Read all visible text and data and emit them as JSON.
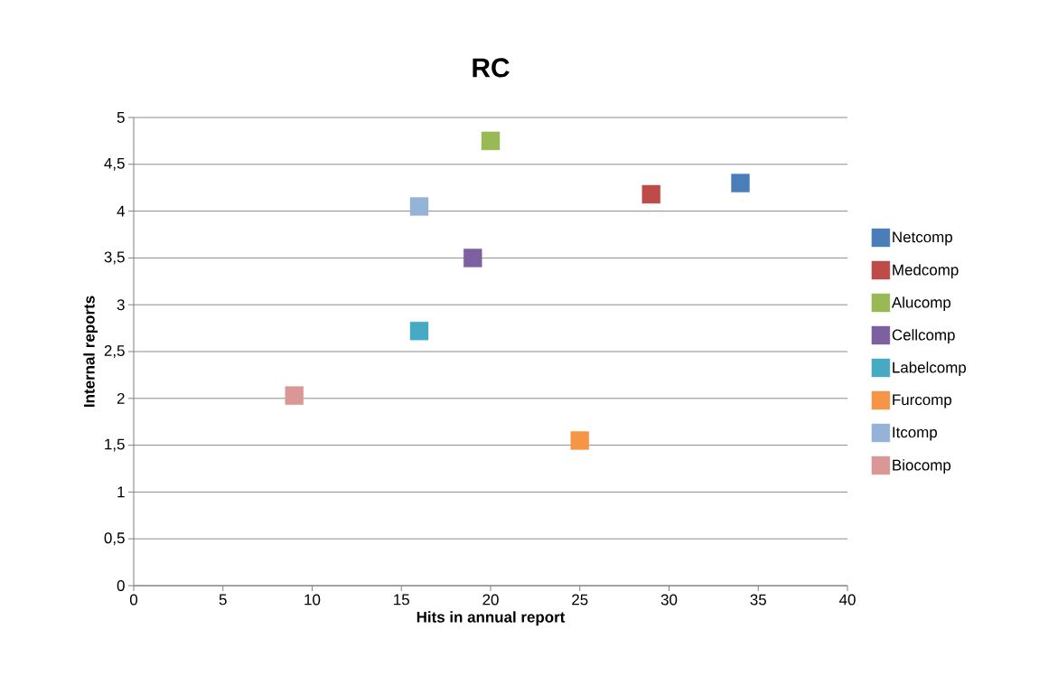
{
  "chart_data": {
    "type": "scatter",
    "title": "RC",
    "xlabel": "Hits in annual report",
    "ylabel": "Internal reports",
    "series": [
      {
        "name": "Netcomp",
        "color": "#4a7ebb",
        "x": [
          34
        ],
        "values": [
          4.3
        ]
      },
      {
        "name": "Medcomp",
        "color": "#be4b48",
        "x": [
          29
        ],
        "values": [
          4.18
        ]
      },
      {
        "name": "Alucomp",
        "color": "#98b954",
        "x": [
          20
        ],
        "values": [
          4.75
        ]
      },
      {
        "name": "Cellcomp",
        "color": "#7d60a0",
        "x": [
          19
        ],
        "values": [
          3.5
        ]
      },
      {
        "name": "Labelcomp",
        "color": "#46aac5",
        "x": [
          16
        ],
        "values": [
          2.72
        ]
      },
      {
        "name": "Furcomp",
        "color": "#f69546",
        "x": [
          25
        ],
        "values": [
          1.55
        ]
      },
      {
        "name": "Itcomp",
        "color": "#95b3d7",
        "x": [
          16
        ],
        "values": [
          4.05
        ]
      },
      {
        "name": "Biocomp",
        "color": "#d99795",
        "x": [
          9
        ],
        "values": [
          2.03
        ]
      }
    ],
    "xlim": [
      0,
      40
    ],
    "xticks": [
      0,
      5,
      10,
      15,
      20,
      25,
      30,
      35,
      40
    ],
    "ylim": [
      0,
      5
    ],
    "yticks": [
      0,
      {
        "value": 0.5,
        "label": "0,5"
      },
      1,
      {
        "value": 1.5,
        "label": "1,5"
      },
      2,
      {
        "value": 2.5,
        "label": "2,5"
      },
      3,
      {
        "value": 3.5,
        "label": "3,5"
      },
      4,
      {
        "value": 4.5,
        "label": "4,5"
      },
      5
    ],
    "grid": "y",
    "legend": "right",
    "marker": "square"
  }
}
